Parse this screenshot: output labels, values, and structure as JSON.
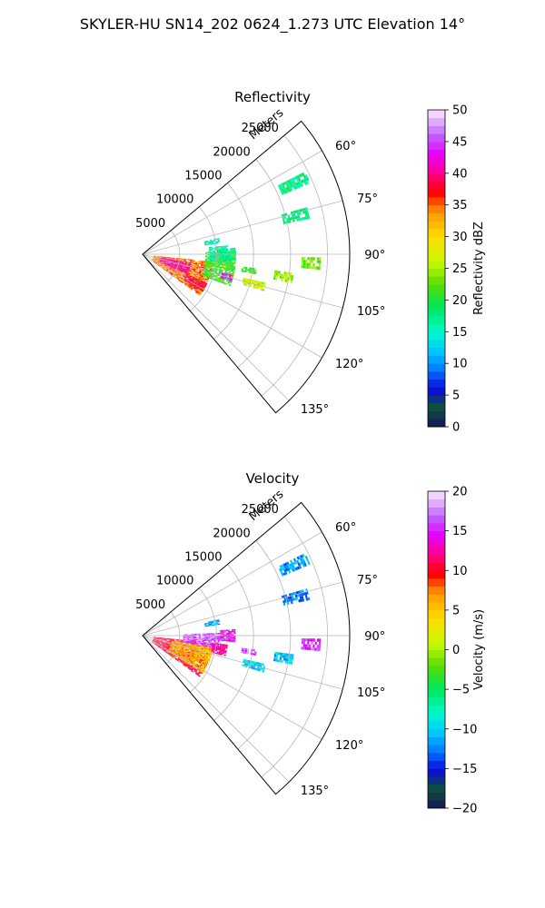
{
  "figure_title": "SKYLER-HU  SN14_202  0624_1.273 UTC Elevation 14°",
  "chart_data": [
    {
      "type": "heatmap",
      "projection": "polar-sector",
      "title": "Reflectivity",
      "radial_axis_label": "Meters",
      "radial_ticks": [
        5000,
        10000,
        15000,
        20000,
        25000
      ],
      "radial_tick_labels": [
        "5000",
        "10000",
        "15000",
        "20000",
        "25000"
      ],
      "rmax": 28000,
      "azimuth_range_deg": [
        50,
        140
      ],
      "azimuth_ticks": [
        60,
        75,
        90,
        105,
        120,
        135
      ],
      "azimuth_tick_labels": [
        "60°",
        "75°",
        "90°",
        "105°",
        "120°",
        "135°"
      ],
      "grid": true,
      "colorbar": {
        "label": "Reflectivity dBZ",
        "vmin": 0,
        "vmax": 50,
        "ticks": [
          0,
          5,
          10,
          15,
          20,
          25,
          30,
          35,
          40,
          45,
          50
        ],
        "tick_labels": [
          "0",
          "5",
          "10",
          "15",
          "20",
          "25",
          "30",
          "35",
          "40",
          "45",
          "50"
        ]
      },
      "echo_regions": [
        {
          "az": [
            96,
            126
          ],
          "r": [
            1500,
            9500
          ],
          "value": 34
        },
        {
          "az": [
            100,
            114
          ],
          "r": [
            2500,
            6500
          ],
          "value": 41
        },
        {
          "az": [
            114,
            122
          ],
          "r": [
            6500,
            9500
          ],
          "value": 38
        },
        {
          "az": [
            88,
            110
          ],
          "r": [
            8500,
            12500
          ],
          "value": 21
        },
        {
          "az": [
            84,
            96
          ],
          "r": [
            9000,
            11500
          ],
          "value": 16
        },
        {
          "az": [
            103,
            107
          ],
          "r": [
            11000,
            12500
          ],
          "value": 43
        },
        {
          "az": [
            78,
            82
          ],
          "r": [
            8500,
            10500
          ],
          "value": 15
        },
        {
          "az": [
            86,
            94
          ],
          "r": [
            10500,
            12500
          ],
          "value": 17
        },
        {
          "az": [
            97,
            100
          ],
          "r": [
            13500,
            15500
          ],
          "value": 20
        },
        {
          "az": [
            103,
            107
          ],
          "r": [
            14000,
            17000
          ],
          "value": 26
        },
        {
          "az": [
            97,
            101
          ],
          "r": [
            18000,
            20500
          ],
          "value": 24
        },
        {
          "az": [
            91,
            95
          ],
          "r": [
            21500,
            24000
          ],
          "value": 22
        },
        {
          "az": [
            74,
            78
          ],
          "r": [
            19500,
            23000
          ],
          "value": 17
        },
        {
          "az": [
            63,
            67
          ],
          "r": [
            20500,
            24500
          ],
          "value": 17
        }
      ]
    },
    {
      "type": "heatmap",
      "projection": "polar-sector",
      "title": "Velocity",
      "radial_axis_label": "Meters",
      "radial_ticks": [
        5000,
        10000,
        15000,
        20000,
        25000
      ],
      "radial_tick_labels": [
        "5000",
        "10000",
        "15000",
        "20000",
        "25000"
      ],
      "rmax": 28000,
      "azimuth_range_deg": [
        50,
        140
      ],
      "azimuth_ticks": [
        60,
        75,
        90,
        105,
        120,
        135
      ],
      "azimuth_tick_labels": [
        "60°",
        "75°",
        "90°",
        "105°",
        "120°",
        "135°"
      ],
      "grid": true,
      "colorbar": {
        "label": "Velocity (m/s)",
        "vmin": -20,
        "vmax": 20,
        "ticks": [
          -20,
          -15,
          -10,
          -5,
          0,
          5,
          10,
          15,
          20
        ],
        "tick_labels": [
          "−20",
          "−15",
          "−10",
          "−5",
          "0",
          "5",
          "10",
          "15",
          "20"
        ]
      },
      "echo_regions": [
        {
          "az": [
            96,
            126
          ],
          "r": [
            1500,
            9500
          ],
          "value": 10
        },
        {
          "az": [
            100,
            122
          ],
          "r": [
            4000,
            9500
          ],
          "value": 5
        },
        {
          "az": [
            88,
            100
          ],
          "r": [
            5500,
            10500
          ],
          "value": 16
        },
        {
          "az": [
            96,
            104
          ],
          "r": [
            9500,
            11500
          ],
          "value": 12
        },
        {
          "az": [
            78,
            82
          ],
          "r": [
            8500,
            10500
          ],
          "value": -12
        },
        {
          "az": [
            86,
            94
          ],
          "r": [
            10500,
            12500
          ],
          "value": 14
        },
        {
          "az": [
            97,
            100
          ],
          "r": [
            13500,
            15500
          ],
          "value": 16
        },
        {
          "az": [
            103,
            107
          ],
          "r": [
            14000,
            17000
          ],
          "value": -10
        },
        {
          "az": [
            97,
            101
          ],
          "r": [
            18000,
            20500
          ],
          "value": -11
        },
        {
          "az": [
            91,
            95
          ],
          "r": [
            21500,
            24000
          ],
          "value": 15
        },
        {
          "az": [
            74,
            78
          ],
          "r": [
            19500,
            23000
          ],
          "value": -13
        },
        {
          "az": [
            63,
            67
          ],
          "r": [
            20500,
            24500
          ],
          "value": -12
        }
      ]
    }
  ]
}
